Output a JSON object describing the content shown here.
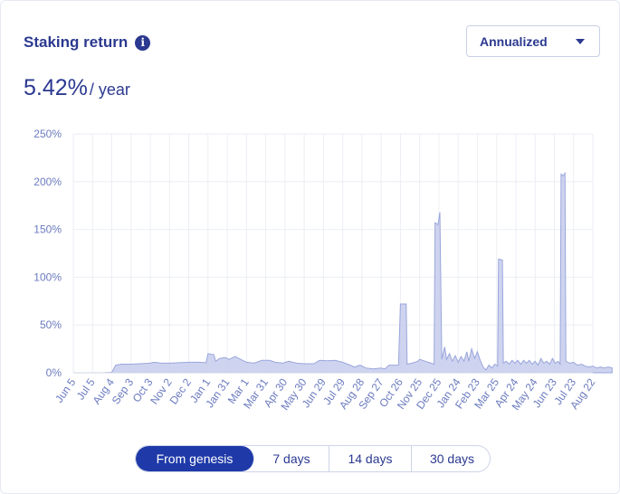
{
  "header": {
    "title": "Staking return",
    "info_icon": "info-icon",
    "dropdown_value": "Annualized",
    "dropdown_icon": "chevron-down-icon"
  },
  "rate": {
    "value": "5.42%",
    "unit": "/ year"
  },
  "range_tabs": [
    {
      "label": "From genesis",
      "active": true
    },
    {
      "label": "7 days",
      "active": false
    },
    {
      "label": "14 days",
      "active": false
    },
    {
      "label": "30 days",
      "active": false
    }
  ],
  "colors": {
    "accent": "#2b3990",
    "active_tab": "#1f3aa8",
    "area_fill": "#c5ccec",
    "area_line": "#9aa6dc",
    "axis_text": "#6b7bbf",
    "grid": "#eceef4"
  },
  "chart_data": {
    "type": "area",
    "ylim": [
      0,
      250
    ],
    "y_ticks": [
      "0%",
      "50%",
      "100%",
      "150%",
      "200%",
      "250%"
    ],
    "x_labels": [
      "Jun 5",
      "Jul 5",
      "Aug 4",
      "Sep 3",
      "Oct 3",
      "Nov 2",
      "Dec 2",
      "Jan 1",
      "Jan 31",
      "Mar 1",
      "Mar 31",
      "Apr 30",
      "May 30",
      "Jun 29",
      "Jul 29",
      "Aug 28",
      "Sep 27",
      "Oct 26",
      "Nov 25",
      "Dec 25",
      "Jan 24",
      "Feb 23",
      "Mar 25",
      "Apr 24",
      "May 24",
      "Jun 23",
      "Jul 23",
      "Aug 22"
    ],
    "grid": true,
    "points": [
      [
        0,
        0
      ],
      [
        1.5,
        0
      ],
      [
        2.0,
        0.5
      ],
      [
        2.2,
        8
      ],
      [
        2.5,
        9
      ],
      [
        3.0,
        9
      ],
      [
        3.5,
        9.5
      ],
      [
        4.0,
        10
      ],
      [
        4.2,
        11
      ],
      [
        4.6,
        10
      ],
      [
        5.0,
        10
      ],
      [
        5.5,
        10.5
      ],
      [
        6.0,
        11
      ],
      [
        6.5,
        11
      ],
      [
        6.9,
        10.5
      ],
      [
        7.0,
        20
      ],
      [
        7.3,
        19
      ],
      [
        7.4,
        12
      ],
      [
        7.6,
        15
      ],
      [
        7.9,
        16
      ],
      [
        8.1,
        14
      ],
      [
        8.4,
        17
      ],
      [
        8.7,
        14
      ],
      [
        9.0,
        11
      ],
      [
        9.4,
        10
      ],
      [
        9.8,
        13
      ],
      [
        10.2,
        13
      ],
      [
        10.5,
        11
      ],
      [
        10.9,
        10
      ],
      [
        11.2,
        12
      ],
      [
        11.6,
        10
      ],
      [
        12.0,
        9.5
      ],
      [
        12.5,
        9.5
      ],
      [
        12.8,
        13
      ],
      [
        13.2,
        12.5
      ],
      [
        13.6,
        13
      ],
      [
        14.0,
        11
      ],
      [
        14.4,
        8
      ],
      [
        14.6,
        6
      ],
      [
        14.9,
        8
      ],
      [
        15.2,
        5
      ],
      [
        15.6,
        4
      ],
      [
        16.0,
        5
      ],
      [
        16.2,
        4
      ],
      [
        16.4,
        8
      ],
      [
        16.9,
        8
      ],
      [
        17.0,
        72
      ],
      [
        17.3,
        72
      ],
      [
        17.35,
        9
      ],
      [
        17.6,
        10
      ],
      [
        17.9,
        12
      ],
      [
        18.0,
        14
      ],
      [
        18.3,
        12
      ],
      [
        18.6,
        10
      ],
      [
        18.75,
        9
      ],
      [
        18.8,
        157
      ],
      [
        18.95,
        155
      ],
      [
        19.05,
        168
      ],
      [
        19.15,
        14
      ],
      [
        19.3,
        27
      ],
      [
        19.4,
        14
      ],
      [
        19.55,
        20
      ],
      [
        19.7,
        12
      ],
      [
        19.85,
        18
      ],
      [
        20.0,
        11
      ],
      [
        20.15,
        17
      ],
      [
        20.3,
        12
      ],
      [
        20.45,
        22
      ],
      [
        20.55,
        12
      ],
      [
        20.7,
        25
      ],
      [
        20.85,
        15
      ],
      [
        21.0,
        22
      ],
      [
        21.15,
        13
      ],
      [
        21.3,
        6
      ],
      [
        21.45,
        3
      ],
      [
        21.6,
        8
      ],
      [
        21.75,
        5
      ],
      [
        21.9,
        9
      ],
      [
        22.05,
        7
      ],
      [
        22.1,
        119
      ],
      [
        22.3,
        118
      ],
      [
        22.35,
        10
      ],
      [
        22.5,
        12
      ],
      [
        22.65,
        9
      ],
      [
        22.8,
        13
      ],
      [
        22.95,
        10
      ],
      [
        23.1,
        13
      ],
      [
        23.25,
        9
      ],
      [
        23.4,
        13
      ],
      [
        23.55,
        10
      ],
      [
        23.7,
        13
      ],
      [
        23.85,
        9
      ],
      [
        24.0,
        12
      ],
      [
        24.15,
        8
      ],
      [
        24.3,
        15
      ],
      [
        24.45,
        10
      ],
      [
        24.6,
        12
      ],
      [
        24.75,
        9
      ],
      [
        24.9,
        15
      ],
      [
        25.05,
        10
      ],
      [
        25.2,
        12
      ],
      [
        25.3,
        9
      ],
      [
        25.35,
        208
      ],
      [
        25.45,
        206
      ],
      [
        25.55,
        209
      ],
      [
        25.6,
        12
      ],
      [
        25.8,
        10
      ],
      [
        26.0,
        11
      ],
      [
        26.2,
        8
      ],
      [
        26.4,
        9
      ],
      [
        26.6,
        7
      ],
      [
        26.8,
        6
      ],
      [
        27.0,
        7
      ],
      [
        27.2,
        5
      ],
      [
        27.4,
        6
      ],
      [
        27.6,
        5
      ],
      [
        27.8,
        6
      ],
      [
        28.0,
        5
      ]
    ]
  }
}
